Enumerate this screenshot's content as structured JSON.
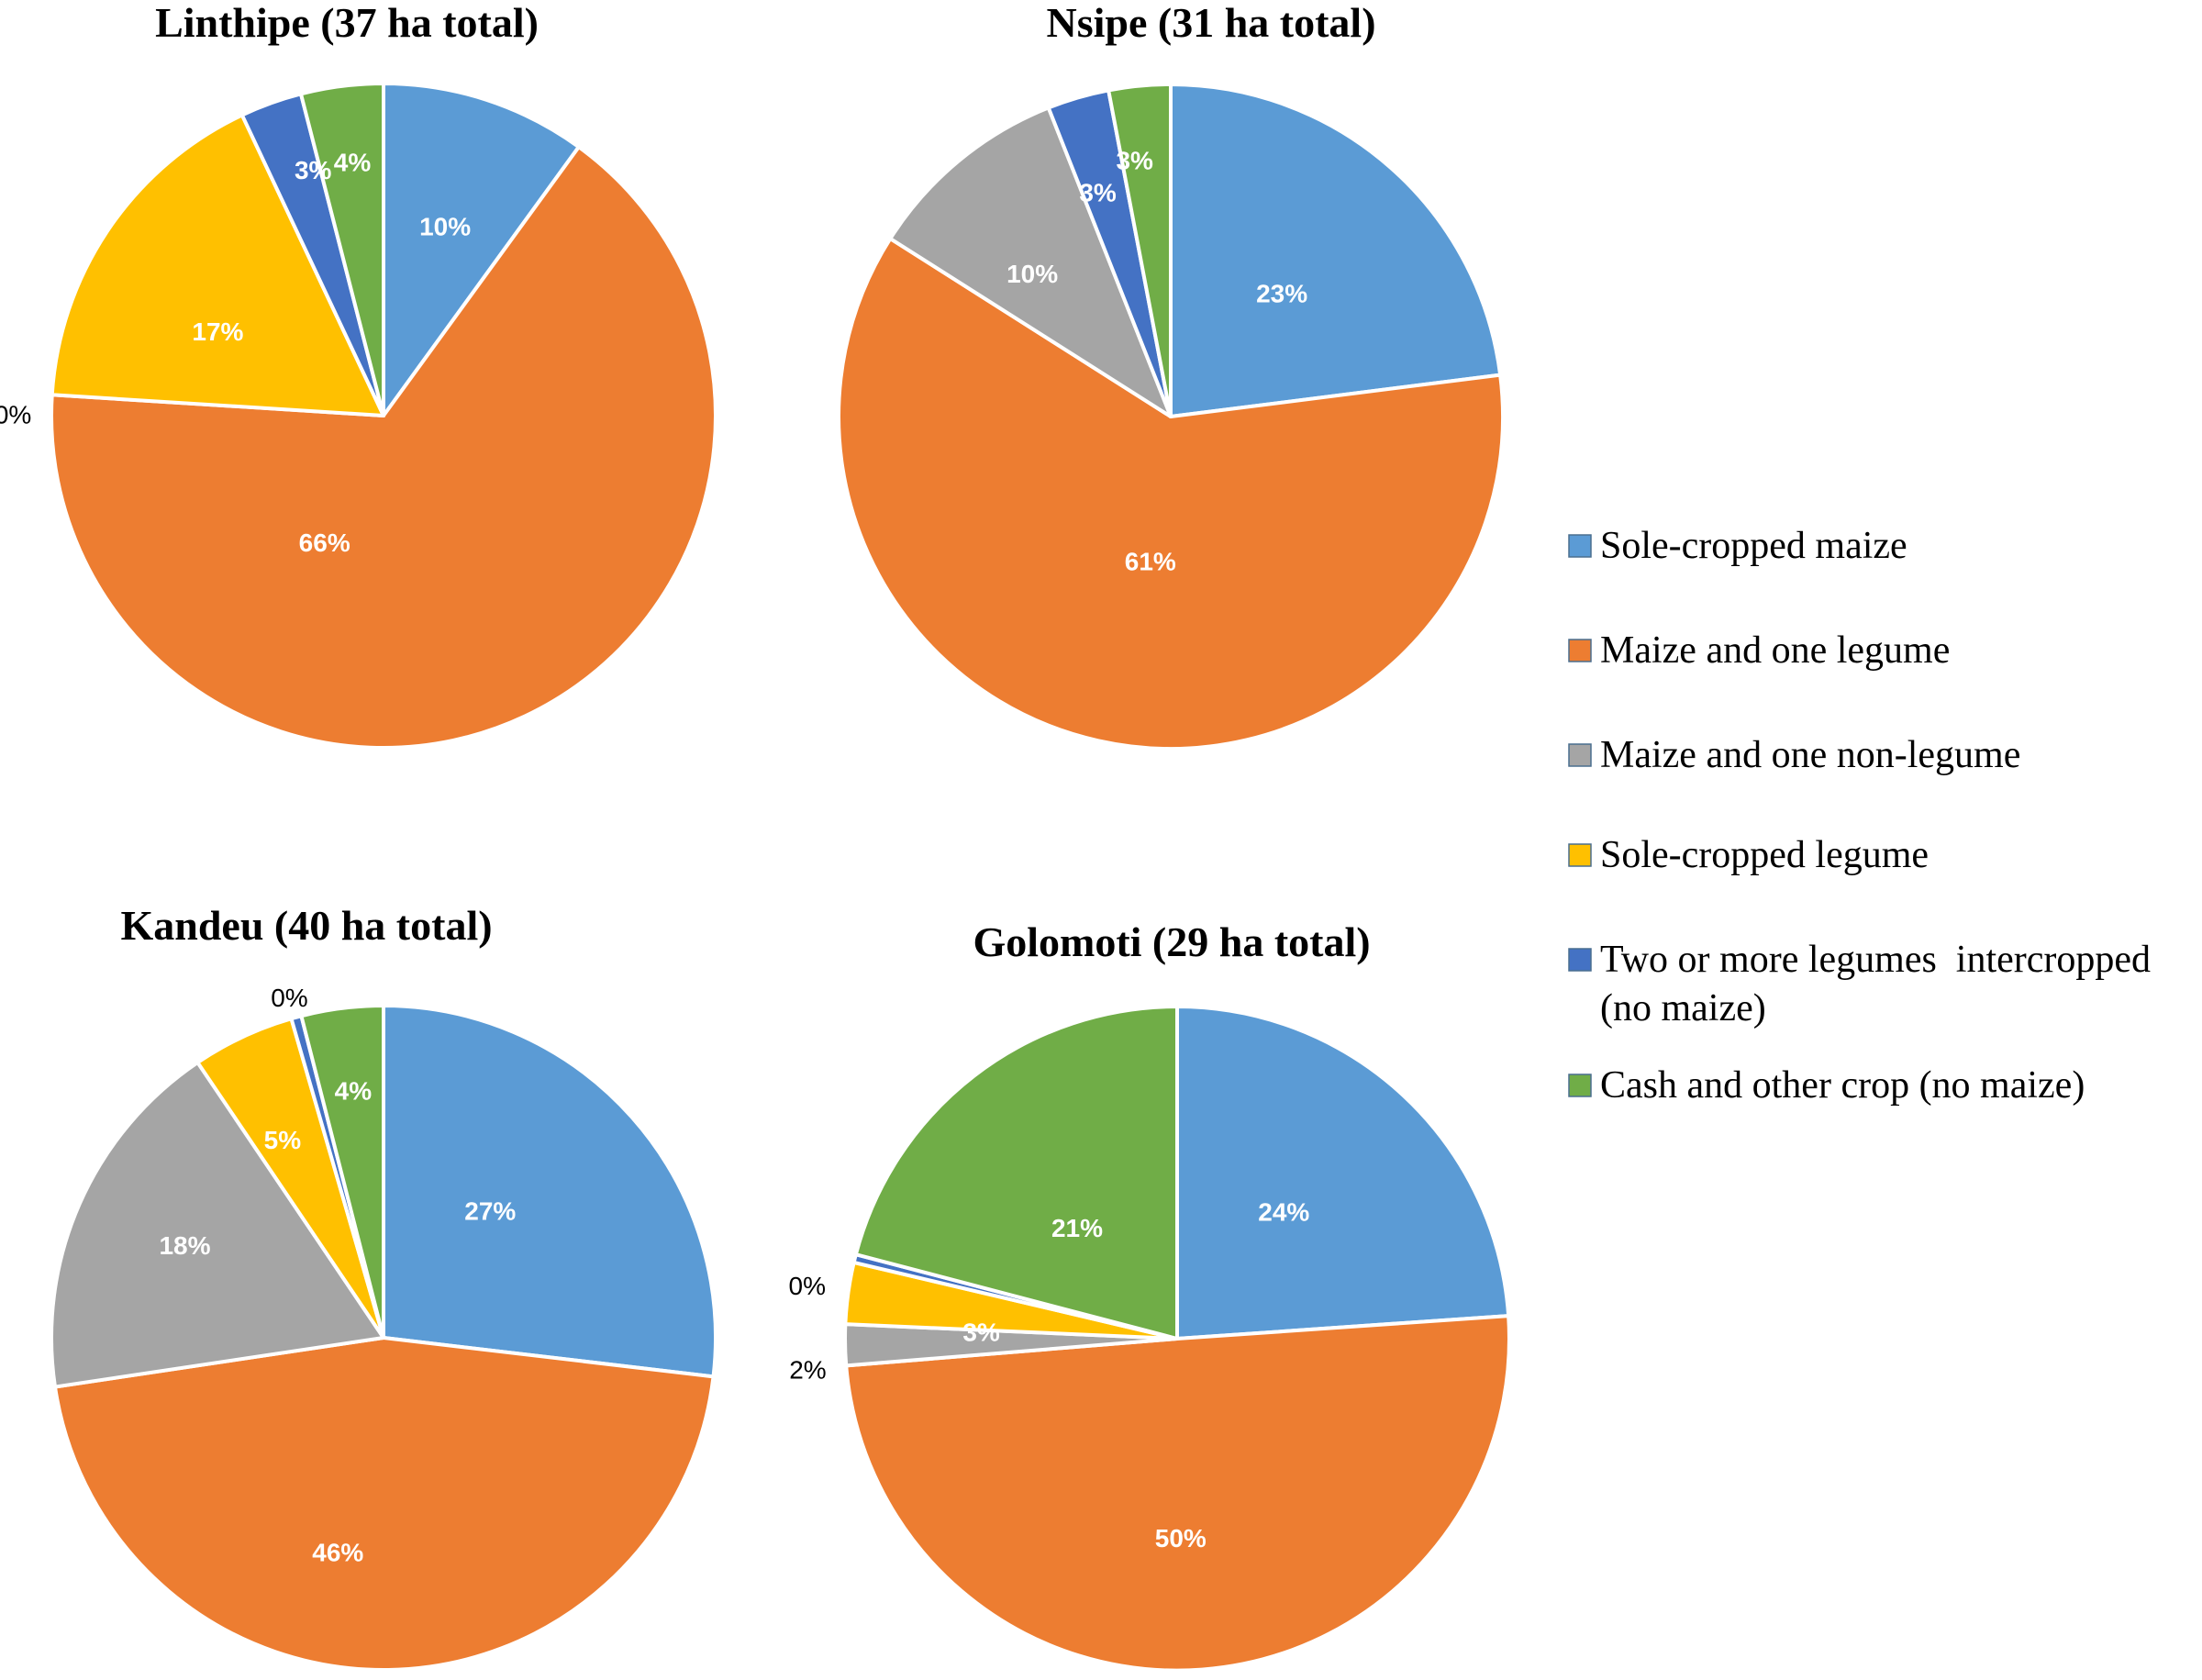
{
  "chart_data": {
    "type": "pie",
    "series_names": [
      "Sole-cropped maize",
      "Maize and one legume",
      "Maize and one non-legume",
      "Sole-cropped legume",
      "Two or more legumes  intercropped (no maize)",
      "Cash and other crop (no maize)"
    ],
    "colors": [
      "#5b9bd5",
      "#ed7d31",
      "#a5a5a5",
      "#ffc000",
      "#4472c4",
      "#70ad47"
    ],
    "legend": {
      "position": "right",
      "items": [
        {
          "lines": [
            "Sole-cropped maize"
          ],
          "color": "#5b9bd5"
        },
        {
          "lines": [
            "Maize and one legume"
          ],
          "color": "#ed7d31"
        },
        {
          "lines": [
            "Maize and one non-legume"
          ],
          "color": "#a5a5a5"
        },
        {
          "lines": [
            "Sole-cropped legume"
          ],
          "color": "#ffc000"
        },
        {
          "lines": [
            "Two or more legumes  intercropped",
            "(no maize)"
          ],
          "color": "#4472c4"
        },
        {
          "lines": [
            "Cash and other crop (no maize)"
          ],
          "color": "#70ad47"
        }
      ]
    },
    "pies": [
      {
        "title": "Linthipe (37 ha total)",
        "values": [
          10,
          66,
          0,
          17,
          3,
          4
        ],
        "labels": [
          "10%",
          "66%",
          "0%",
          "17%",
          "3%",
          "4%"
        ]
      },
      {
        "title": "Nsipe (31 ha total)",
        "values": [
          23,
          61,
          10,
          0,
          3,
          3
        ],
        "labels": [
          "23%",
          "61%",
          "10%",
          "",
          "3%",
          "3%"
        ]
      },
      {
        "title": "Kandeu (40 ha total)",
        "values": [
          27,
          46,
          18,
          5,
          0.5,
          4
        ],
        "labels": [
          "27%",
          "46%",
          "18%",
          "5%",
          "0%",
          "4%"
        ]
      },
      {
        "title": "Golomoti (29 ha total)",
        "values": [
          24,
          50,
          2,
          3,
          0.4,
          21
        ],
        "labels": [
          "24%",
          "50%",
          "2%",
          "3%",
          "0%",
          "21%"
        ]
      }
    ]
  }
}
